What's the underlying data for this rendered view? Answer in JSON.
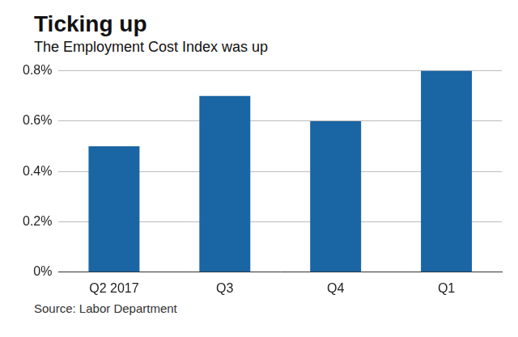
{
  "chart_data": {
    "type": "bar",
    "title": "Ticking up",
    "subtitle": "The Employment Cost Index was up",
    "source": "Source: Labor Department",
    "categories": [
      "Q2 2017",
      "Q3",
      "Q4",
      "Q1"
    ],
    "values": [
      0.5,
      0.7,
      0.6,
      0.8
    ],
    "color": "#1a65a3",
    "ylim": [
      0,
      0.8
    ],
    "yticks": [
      {
        "value": 0,
        "label": "0%"
      },
      {
        "value": 0.2,
        "label": "0.2%"
      },
      {
        "value": 0.4,
        "label": "0.4%"
      },
      {
        "value": 0.6,
        "label": "0.6%"
      },
      {
        "value": 0.8,
        "label": "0.8%"
      }
    ],
    "grid": true
  }
}
